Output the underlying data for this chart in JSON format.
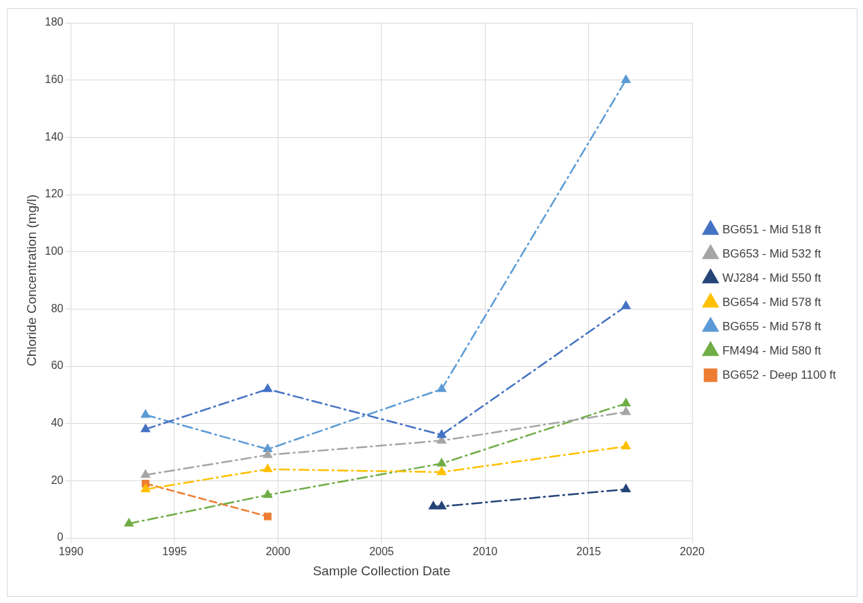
{
  "chart_data": {
    "type": "line",
    "xlabel": "Sample Collection Date",
    "ylabel": "Chloride Concentration (mg/l)",
    "xlim": [
      1990,
      2020
    ],
    "xticks": [
      1990,
      1995,
      2000,
      2005,
      2010,
      2015,
      2020
    ],
    "ylim": [
      0,
      180
    ],
    "yticks": [
      0,
      20,
      40,
      60,
      80,
      100,
      120,
      140,
      160,
      180
    ],
    "grid": true,
    "legend": "right",
    "series": [
      {
        "name": "BG651 - Mid 518 ft",
        "color": "#4472c4",
        "marker": "triangle",
        "line_style": "dashdot",
        "x": [
          1993.6,
          1999.5,
          2007.9,
          2016.8
        ],
        "values": [
          38,
          52,
          36,
          81
        ]
      },
      {
        "name": "BG653 - Mid 532 ft",
        "color": "#a5a5a5",
        "marker": "triangle",
        "line_style": "dashdot",
        "x": [
          1993.6,
          1999.5,
          2007.9,
          2016.8
        ],
        "values": [
          22,
          29,
          34,
          44
        ]
      },
      {
        "name": "WJ284 - Mid 550 ft",
        "color": "#264478",
        "marker": "triangle",
        "line_style": "dashdot",
        "x": [
          2007.5,
          2007.9,
          2016.8
        ],
        "values": [
          11,
          11,
          17
        ]
      },
      {
        "name": "BG654 - Mid 578 ft",
        "color": "#ffc000",
        "marker": "triangle",
        "line_style": "dashdot",
        "x": [
          1993.6,
          1999.5,
          2007.9,
          2016.8
        ],
        "values": [
          17,
          24,
          23,
          32
        ]
      },
      {
        "name": "BG655 - Mid 578 ft",
        "color": "#5b9bd5",
        "marker": "triangle",
        "line_style": "dashdot",
        "x": [
          1993.6,
          1999.5,
          2007.9,
          2016.8
        ],
        "values": [
          43,
          31,
          52,
          160
        ]
      },
      {
        "name": "FM494 - Mid 580 ft",
        "color": "#70ad47",
        "marker": "triangle",
        "line_style": "dashdot",
        "x": [
          1992.8,
          1999.5,
          2007.9,
          2016.8
        ],
        "values": [
          5,
          15,
          26,
          47
        ]
      },
      {
        "name": "BG652 - Deep 1100 ft",
        "color": "#ed7d31",
        "marker": "square",
        "line_style": "dashed",
        "x": [
          1993.6,
          1999.5
        ],
        "values": [
          19,
          7.5
        ]
      }
    ]
  }
}
